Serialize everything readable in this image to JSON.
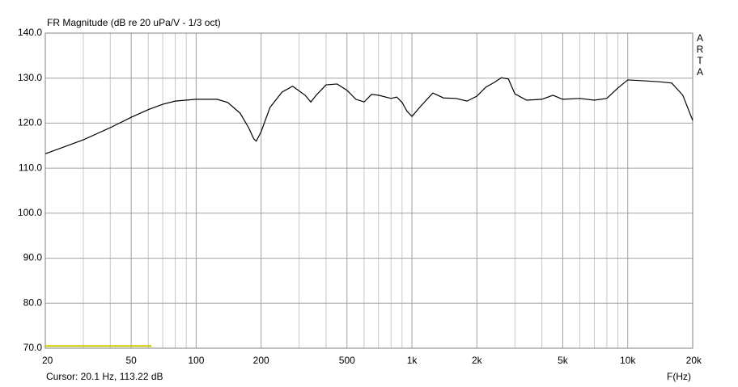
{
  "chart_data": {
    "type": "line",
    "title": "FR Magnitude (dB re 20 uPa/V - 1/3 oct)",
    "xlabel": "F(Hz)",
    "cursor_text": "Cursor: 20.1 Hz, 113.22 dB",
    "brand": [
      "A",
      "R",
      "T",
      "A"
    ],
    "xscale": "log",
    "grid": true,
    "xlim": [
      20,
      20000
    ],
    "ylim": [
      70,
      140
    ],
    "xticks": [
      20,
      50,
      100,
      200,
      500,
      {
        "value": 1000,
        "label": "1k"
      },
      {
        "value": 2000,
        "label": "2k"
      },
      {
        "value": 5000,
        "label": "5k"
      },
      {
        "value": 10000,
        "label": "10k"
      },
      {
        "value": 20000,
        "label": "20k"
      }
    ],
    "xminor": [
      30,
      40,
      60,
      70,
      80,
      90,
      300,
      400,
      600,
      700,
      800,
      900,
      3000,
      4000,
      6000,
      7000,
      8000,
      9000
    ],
    "yticks": [
      {
        "value": 70,
        "label": "70.0"
      },
      {
        "value": 80,
        "label": "80.0"
      },
      {
        "value": 90,
        "label": "90.0"
      },
      {
        "value": 100,
        "label": "100.0"
      },
      {
        "value": 110,
        "label": "110.0"
      },
      {
        "value": 120,
        "label": "120.0"
      },
      {
        "value": 130,
        "label": "130.0"
      },
      {
        "value": 140,
        "label": "140.0"
      }
    ],
    "x": [
      20,
      30,
      40,
      50,
      60,
      70,
      80,
      100,
      125,
      140,
      160,
      175,
      185,
      190,
      200,
      220,
      250,
      280,
      320,
      340,
      360,
      400,
      450,
      500,
      550,
      600,
      650,
      700,
      800,
      850,
      900,
      950,
      1000,
      1100,
      1250,
      1400,
      1600,
      1800,
      2000,
      2200,
      2400,
      2600,
      2800,
      3000,
      3400,
      4000,
      4500,
      5000,
      6000,
      7000,
      8000,
      9000,
      10000,
      12000,
      14000,
      16000,
      18000,
      20000
    ],
    "series": [
      {
        "color": "#000000",
        "values": [
          113.2,
          116.3,
          119.0,
          121.3,
          123.0,
          124.2,
          124.9,
          125.3,
          125.3,
          124.6,
          122.2,
          119.0,
          116.5,
          116.0,
          118.1,
          123.5,
          126.9,
          128.2,
          126.2,
          124.7,
          126.2,
          128.5,
          128.7,
          127.3,
          125.3,
          124.7,
          126.4,
          126.2,
          125.5,
          125.8,
          124.6,
          122.6,
          121.5,
          123.8,
          126.7,
          125.6,
          125.5,
          124.9,
          126.0,
          128.0,
          129.0,
          130.1,
          129.8,
          126.5,
          125.1,
          125.3,
          126.2,
          125.3,
          125.5,
          125.1,
          125.5,
          127.8,
          129.6,
          129.4,
          129.2,
          128.9,
          126.2,
          120.6
        ]
      }
    ],
    "marker": {
      "x": [
        20,
        62
      ],
      "y": [
        70.5,
        70.5
      ],
      "color": "#c8c800"
    }
  }
}
